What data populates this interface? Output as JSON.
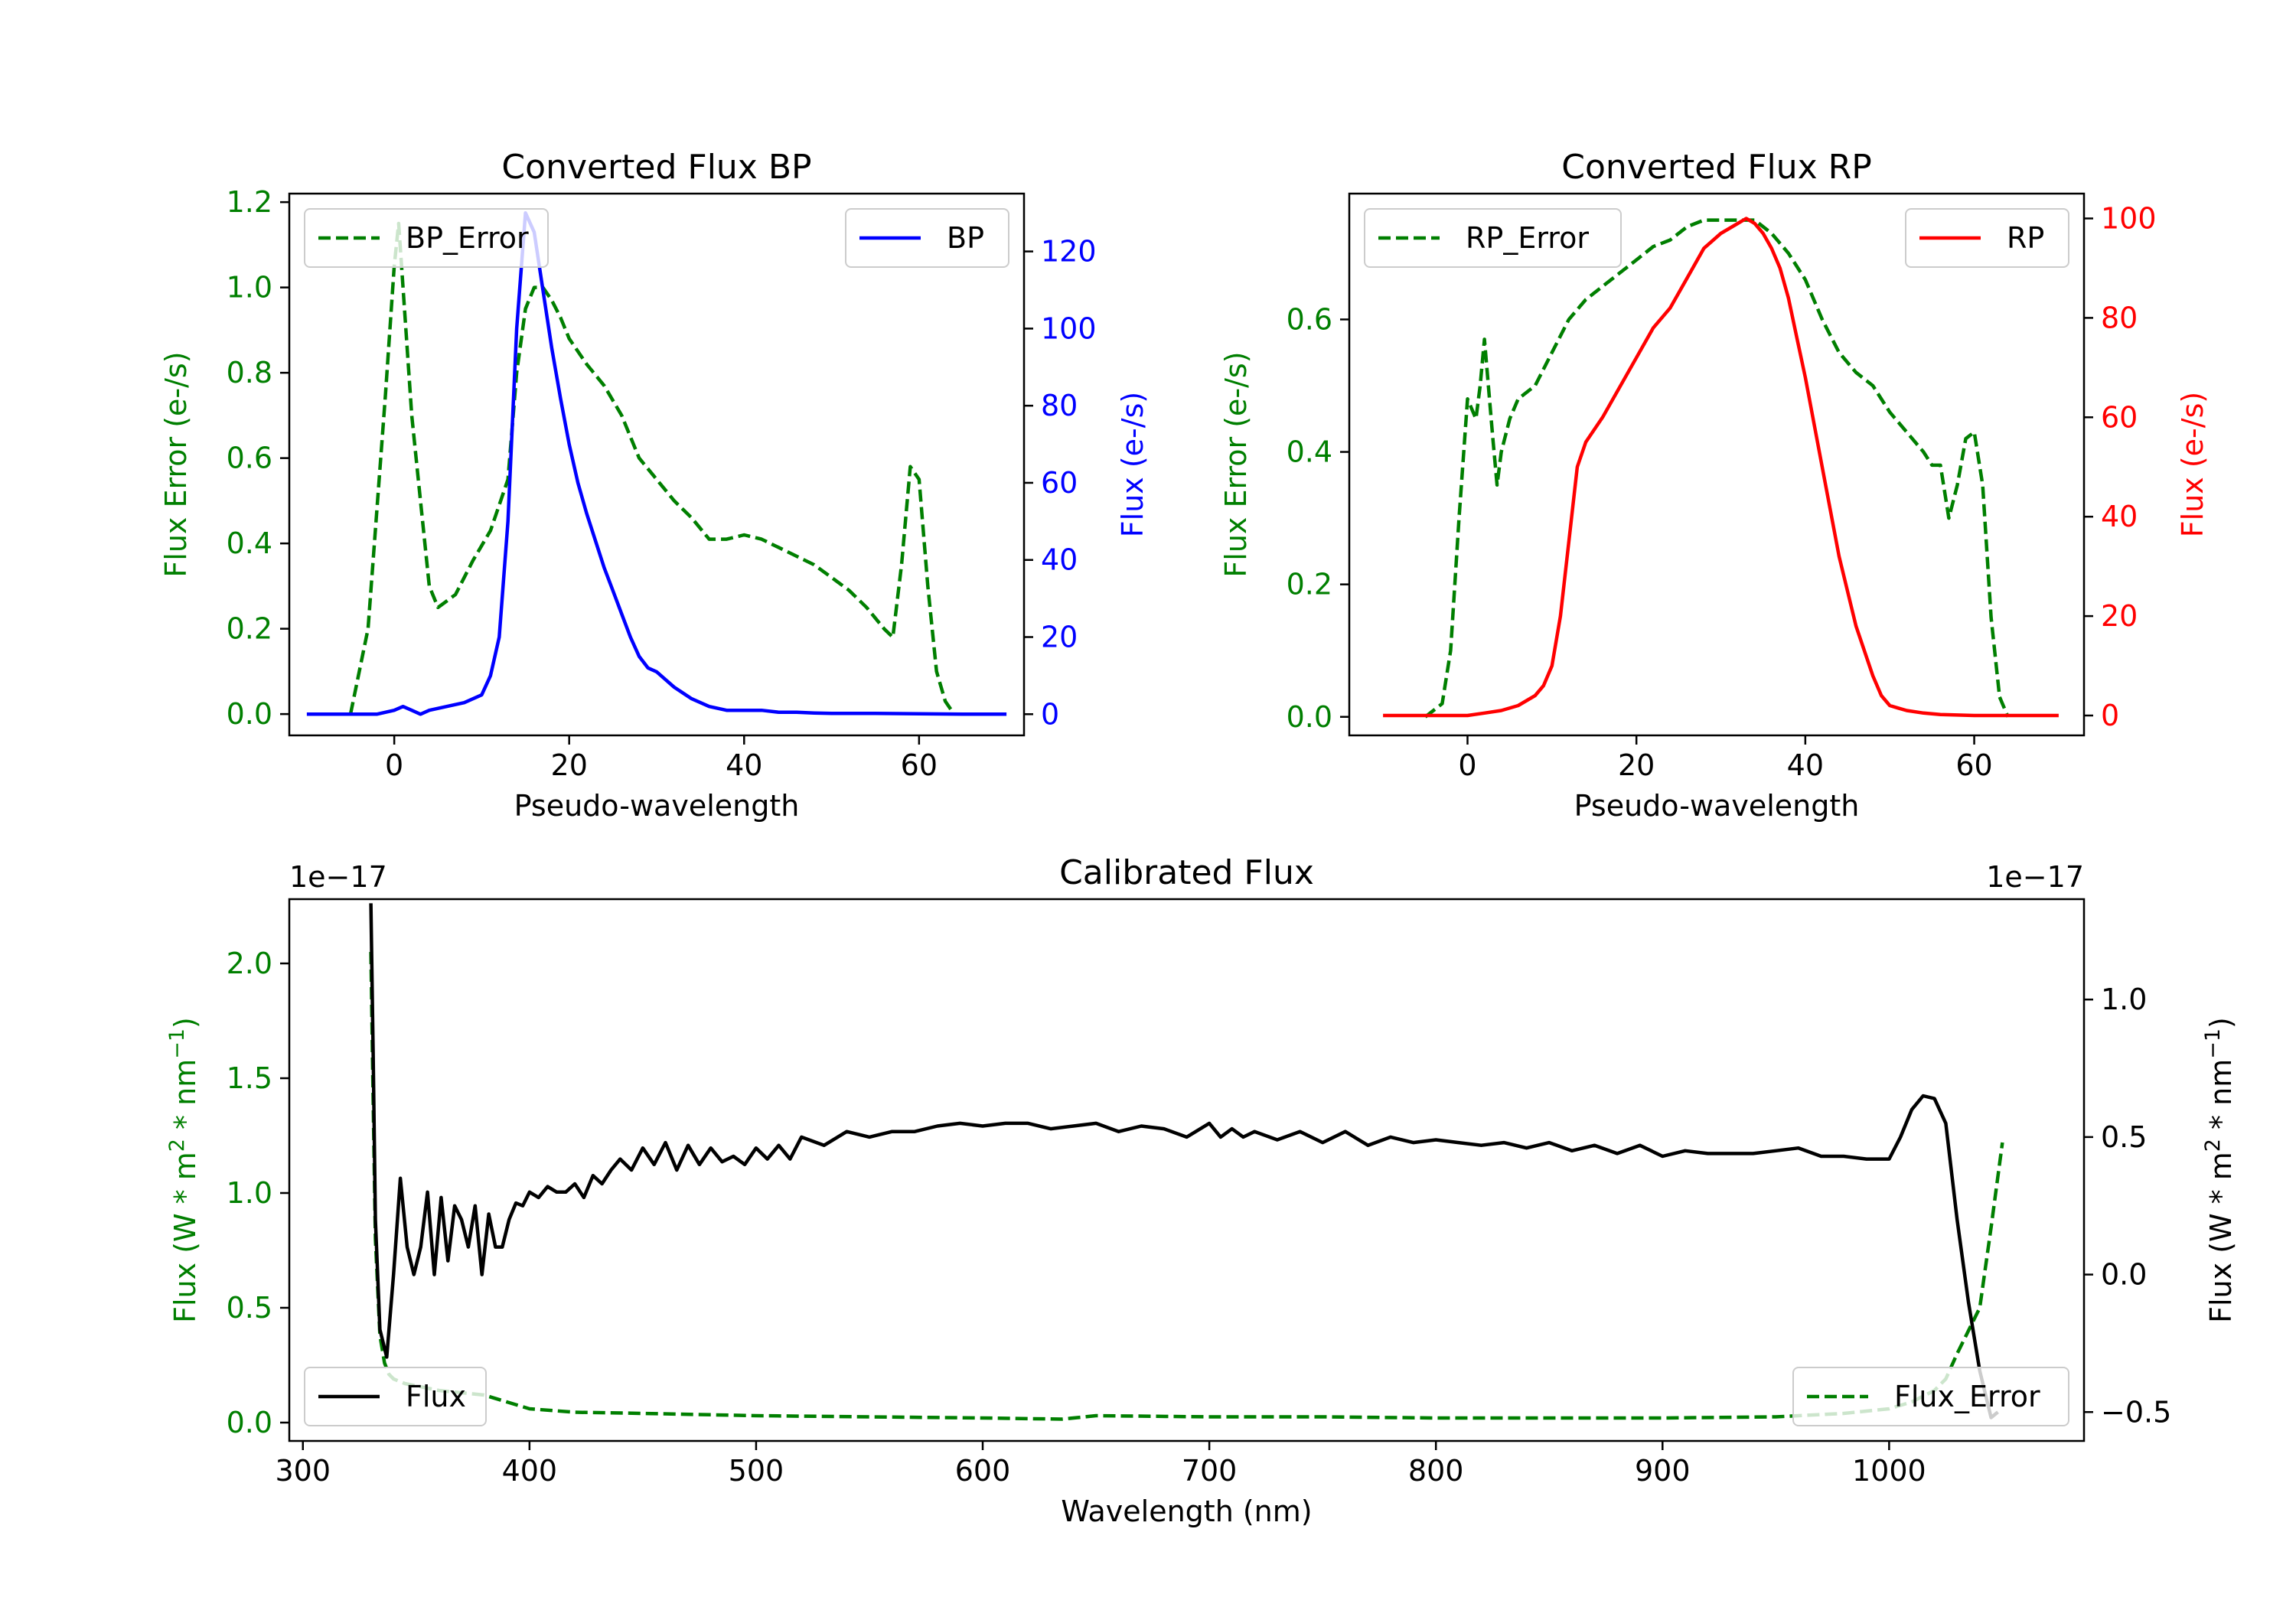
{
  "colors": {
    "green": "#007f00",
    "blue": "#0000ff",
    "red": "#ff0000",
    "black": "#000000"
  },
  "chart_data": [
    {
      "type": "line",
      "title": "Converted Flux BP",
      "xlabel": "Pseudo-wavelength",
      "ylabel_left": "Flux Error (e-/s)",
      "ylabel_right": "Flux (e-/s)",
      "xlim": [
        -12,
        72
      ],
      "ylim_left": [
        -0.05,
        1.22
      ],
      "ylim_right": [
        -5.5,
        135
      ],
      "xticks": [
        "0",
        "20",
        "40",
        "60"
      ],
      "yticks_left": [
        "0.0",
        "0.2",
        "0.4",
        "0.6",
        "0.8",
        "1.0",
        "1.2"
      ],
      "yticks_right": [
        "0",
        "20",
        "40",
        "60",
        "80",
        "100",
        "120"
      ],
      "legend_left": "BP_Error",
      "legend_right": "BP",
      "series": [
        {
          "name": "BP_Error",
          "axis": "left",
          "style": "dashed",
          "color": "#007f00",
          "x": [
            -5,
            -3,
            -1,
            0,
            0.5,
            1,
            2,
            3,
            4,
            5,
            7,
            9,
            11,
            13,
            14,
            15,
            16,
            17,
            18,
            19,
            20,
            22,
            24,
            26,
            28,
            30,
            32,
            34,
            36,
            38,
            40,
            42,
            44,
            46,
            48,
            50,
            52,
            54,
            56,
            57,
            58,
            59,
            60,
            61,
            62,
            63,
            64
          ],
          "y": [
            0,
            0.2,
            0.75,
            1.05,
            1.15,
            1.0,
            0.7,
            0.5,
            0.3,
            0.25,
            0.28,
            0.36,
            0.43,
            0.55,
            0.8,
            0.95,
            1.0,
            1.0,
            0.97,
            0.93,
            0.88,
            0.82,
            0.77,
            0.7,
            0.6,
            0.55,
            0.5,
            0.46,
            0.41,
            0.41,
            0.42,
            0.41,
            0.39,
            0.37,
            0.35,
            0.32,
            0.29,
            0.25,
            0.2,
            0.18,
            0.35,
            0.58,
            0.55,
            0.3,
            0.1,
            0.03,
            0
          ]
        },
        {
          "name": "BP",
          "axis": "right",
          "style": "solid",
          "color": "#0000ff",
          "x": [
            -10,
            -5,
            -2,
            0,
            1,
            2,
            3,
            4,
            6,
            8,
            10,
            11,
            12,
            13,
            14,
            15,
            16,
            17,
            18,
            19,
            20,
            21,
            22,
            23,
            24,
            25,
            26,
            27,
            28,
            29,
            30,
            31,
            32,
            34,
            36,
            38,
            40,
            42,
            44,
            46,
            48,
            50,
            55,
            60,
            65,
            70
          ],
          "y": [
            0,
            0,
            0,
            1,
            2,
            1,
            0,
            1,
            2,
            3,
            5,
            10,
            20,
            50,
            100,
            130,
            125,
            110,
            95,
            82,
            70,
            60,
            52,
            45,
            38,
            32,
            26,
            20,
            15,
            12,
            11,
            9,
            7,
            4,
            2,
            1,
            1,
            1,
            0.5,
            0.5,
            0.3,
            0.2,
            0.2,
            0.1,
            0,
            0
          ]
        }
      ]
    },
    {
      "type": "line",
      "title": "Converted Flux RP",
      "xlabel": "Pseudo-wavelength",
      "ylabel_left": "Flux Error (e-/s)",
      "ylabel_right": "Flux (e-/s)",
      "xlim": [
        -14,
        73
      ],
      "ylim_left": [
        -0.028,
        0.79
      ],
      "ylim_right": [
        -4,
        105
      ],
      "xticks": [
        "0",
        "20",
        "40",
        "60"
      ],
      "yticks_left": [
        "0.0",
        "0.2",
        "0.4",
        "0.6"
      ],
      "yticks_right": [
        "0",
        "20",
        "40",
        "60",
        "80",
        "100"
      ],
      "legend_left": "RP_Error",
      "legend_right": "RP",
      "series": [
        {
          "name": "RP_Error",
          "axis": "left",
          "style": "dashed",
          "color": "#007f00",
          "x": [
            -5,
            -3,
            -2,
            -1,
            0,
            1,
            1.5,
            2,
            3,
            3.5,
            4,
            5,
            6,
            8,
            10,
            12,
            14,
            16,
            18,
            20,
            22,
            24,
            26,
            28,
            30,
            32,
            34,
            36,
            38,
            40,
            42,
            44,
            46,
            48,
            50,
            52,
            54,
            55,
            56,
            57,
            58,
            59,
            60,
            61,
            62,
            63,
            64
          ],
          "y": [
            0,
            0.02,
            0.1,
            0.3,
            0.48,
            0.45,
            0.5,
            0.57,
            0.42,
            0.35,
            0.4,
            0.45,
            0.48,
            0.5,
            0.55,
            0.6,
            0.63,
            0.65,
            0.67,
            0.69,
            0.71,
            0.72,
            0.74,
            0.75,
            0.75,
            0.75,
            0.75,
            0.73,
            0.7,
            0.66,
            0.6,
            0.55,
            0.52,
            0.5,
            0.46,
            0.43,
            0.4,
            0.38,
            0.38,
            0.3,
            0.35,
            0.42,
            0.43,
            0.35,
            0.15,
            0.03,
            0
          ]
        },
        {
          "name": "RP",
          "axis": "right",
          "style": "solid",
          "color": "#ff0000",
          "x": [
            -10,
            -5,
            0,
            2,
            4,
            6,
            8,
            9,
            10,
            11,
            12,
            13,
            14,
            16,
            18,
            20,
            22,
            24,
            26,
            28,
            30,
            32,
            33,
            34,
            35,
            36,
            37,
            38,
            39,
            40,
            42,
            44,
            46,
            48,
            49,
            50,
            51,
            52,
            54,
            56,
            60,
            65,
            70
          ],
          "y": [
            0,
            0,
            0,
            0.5,
            1,
            2,
            4,
            6,
            10,
            20,
            35,
            50,
            55,
            60,
            66,
            72,
            78,
            82,
            88,
            94,
            97,
            99,
            100,
            99,
            97,
            94,
            90,
            84,
            76,
            68,
            50,
            32,
            18,
            8,
            4,
            2,
            1.5,
            1,
            0.5,
            0.2,
            0,
            0,
            0
          ]
        }
      ]
    },
    {
      "type": "line",
      "title": "Calibrated Flux",
      "xlabel": "Wavelength (nm)",
      "ylabel_left": "Flux (W * m^2 * nm^-1)",
      "ylabel_right": "Flux (W * m^2 * nm^-1)",
      "offset_left": "1e−17",
      "offset_right": "1e−17",
      "xlim": [
        294,
        1086
      ],
      "ylim_left": [
        -0.08,
        2.28
      ],
      "ylim_right": [
        -0.605,
        1.365
      ],
      "xticks": [
        "300",
        "400",
        "500",
        "600",
        "700",
        "800",
        "900",
        "1000"
      ],
      "yticks_left": [
        "0.0",
        "0.5",
        "1.0",
        "1.5",
        "2.0"
      ],
      "yticks_right": [
        "−0.5",
        "0.0",
        "0.5",
        "1.0"
      ],
      "legend_left": "Flux",
      "legend_right": "Flux_Error",
      "series": [
        {
          "name": "Flux",
          "axis": "right",
          "style": "solid",
          "color": "#000000",
          "x": [
            330,
            331,
            332,
            334,
            337,
            340,
            343,
            346,
            349,
            352,
            355,
            358,
            361,
            364,
            367,
            370,
            373,
            376,
            379,
            382,
            385,
            388,
            391,
            394,
            397,
            400,
            404,
            408,
            412,
            416,
            420,
            424,
            428,
            432,
            436,
            440,
            445,
            450,
            455,
            460,
            465,
            470,
            475,
            480,
            485,
            490,
            495,
            500,
            505,
            510,
            515,
            520,
            530,
            540,
            550,
            560,
            570,
            580,
            590,
            600,
            610,
            620,
            630,
            640,
            650,
            660,
            670,
            680,
            690,
            700,
            705,
            710,
            715,
            720,
            730,
            740,
            750,
            760,
            770,
            780,
            790,
            800,
            810,
            820,
            830,
            840,
            850,
            860,
            870,
            880,
            890,
            900,
            910,
            920,
            930,
            940,
            950,
            960,
            970,
            980,
            990,
            1000,
            1005,
            1010,
            1015,
            1020,
            1025,
            1030,
            1035,
            1040,
            1045,
            1048
          ],
          "y": [
            1.35,
            0.8,
            0.2,
            -0.2,
            -0.3,
            0.0,
            0.35,
            0.1,
            0.0,
            0.1,
            0.3,
            0.0,
            0.28,
            0.05,
            0.25,
            0.2,
            0.1,
            0.25,
            0.0,
            0.22,
            0.1,
            0.1,
            0.2,
            0.26,
            0.25,
            0.3,
            0.28,
            0.32,
            0.3,
            0.3,
            0.33,
            0.28,
            0.36,
            0.33,
            0.38,
            0.42,
            0.38,
            0.46,
            0.4,
            0.48,
            0.38,
            0.47,
            0.4,
            0.46,
            0.41,
            0.43,
            0.4,
            0.46,
            0.42,
            0.47,
            0.42,
            0.5,
            0.47,
            0.52,
            0.5,
            0.52,
            0.52,
            0.54,
            0.55,
            0.54,
            0.55,
            0.55,
            0.53,
            0.54,
            0.55,
            0.52,
            0.54,
            0.53,
            0.5,
            0.55,
            0.5,
            0.53,
            0.5,
            0.52,
            0.49,
            0.52,
            0.48,
            0.52,
            0.47,
            0.5,
            0.48,
            0.49,
            0.48,
            0.47,
            0.48,
            0.46,
            0.48,
            0.45,
            0.47,
            0.44,
            0.47,
            0.43,
            0.45,
            0.44,
            0.44,
            0.44,
            0.45,
            0.46,
            0.43,
            0.43,
            0.42,
            0.42,
            0.5,
            0.6,
            0.65,
            0.64,
            0.55,
            0.2,
            -0.1,
            -0.35,
            -0.52,
            -0.5
          ]
        },
        {
          "name": "Flux_Error",
          "axis": "left",
          "style": "dashed",
          "color": "#007f00",
          "x": [
            330,
            331,
            332,
            334,
            336,
            338,
            340,
            345,
            350,
            360,
            370,
            380,
            390,
            400,
            420,
            450,
            500,
            550,
            600,
            635,
            650,
            700,
            750,
            800,
            850,
            900,
            950,
            980,
            1000,
            1010,
            1020,
            1025,
            1030,
            1035,
            1040,
            1045,
            1050
          ],
          "y": [
            2.05,
            1.4,
            0.8,
            0.38,
            0.26,
            0.21,
            0.19,
            0.17,
            0.16,
            0.14,
            0.13,
            0.12,
            0.09,
            0.06,
            0.045,
            0.04,
            0.03,
            0.025,
            0.02,
            0.015,
            0.03,
            0.025,
            0.025,
            0.02,
            0.02,
            0.02,
            0.025,
            0.04,
            0.06,
            0.09,
            0.14,
            0.19,
            0.3,
            0.4,
            0.5,
            0.85,
            1.22
          ]
        }
      ]
    }
  ]
}
